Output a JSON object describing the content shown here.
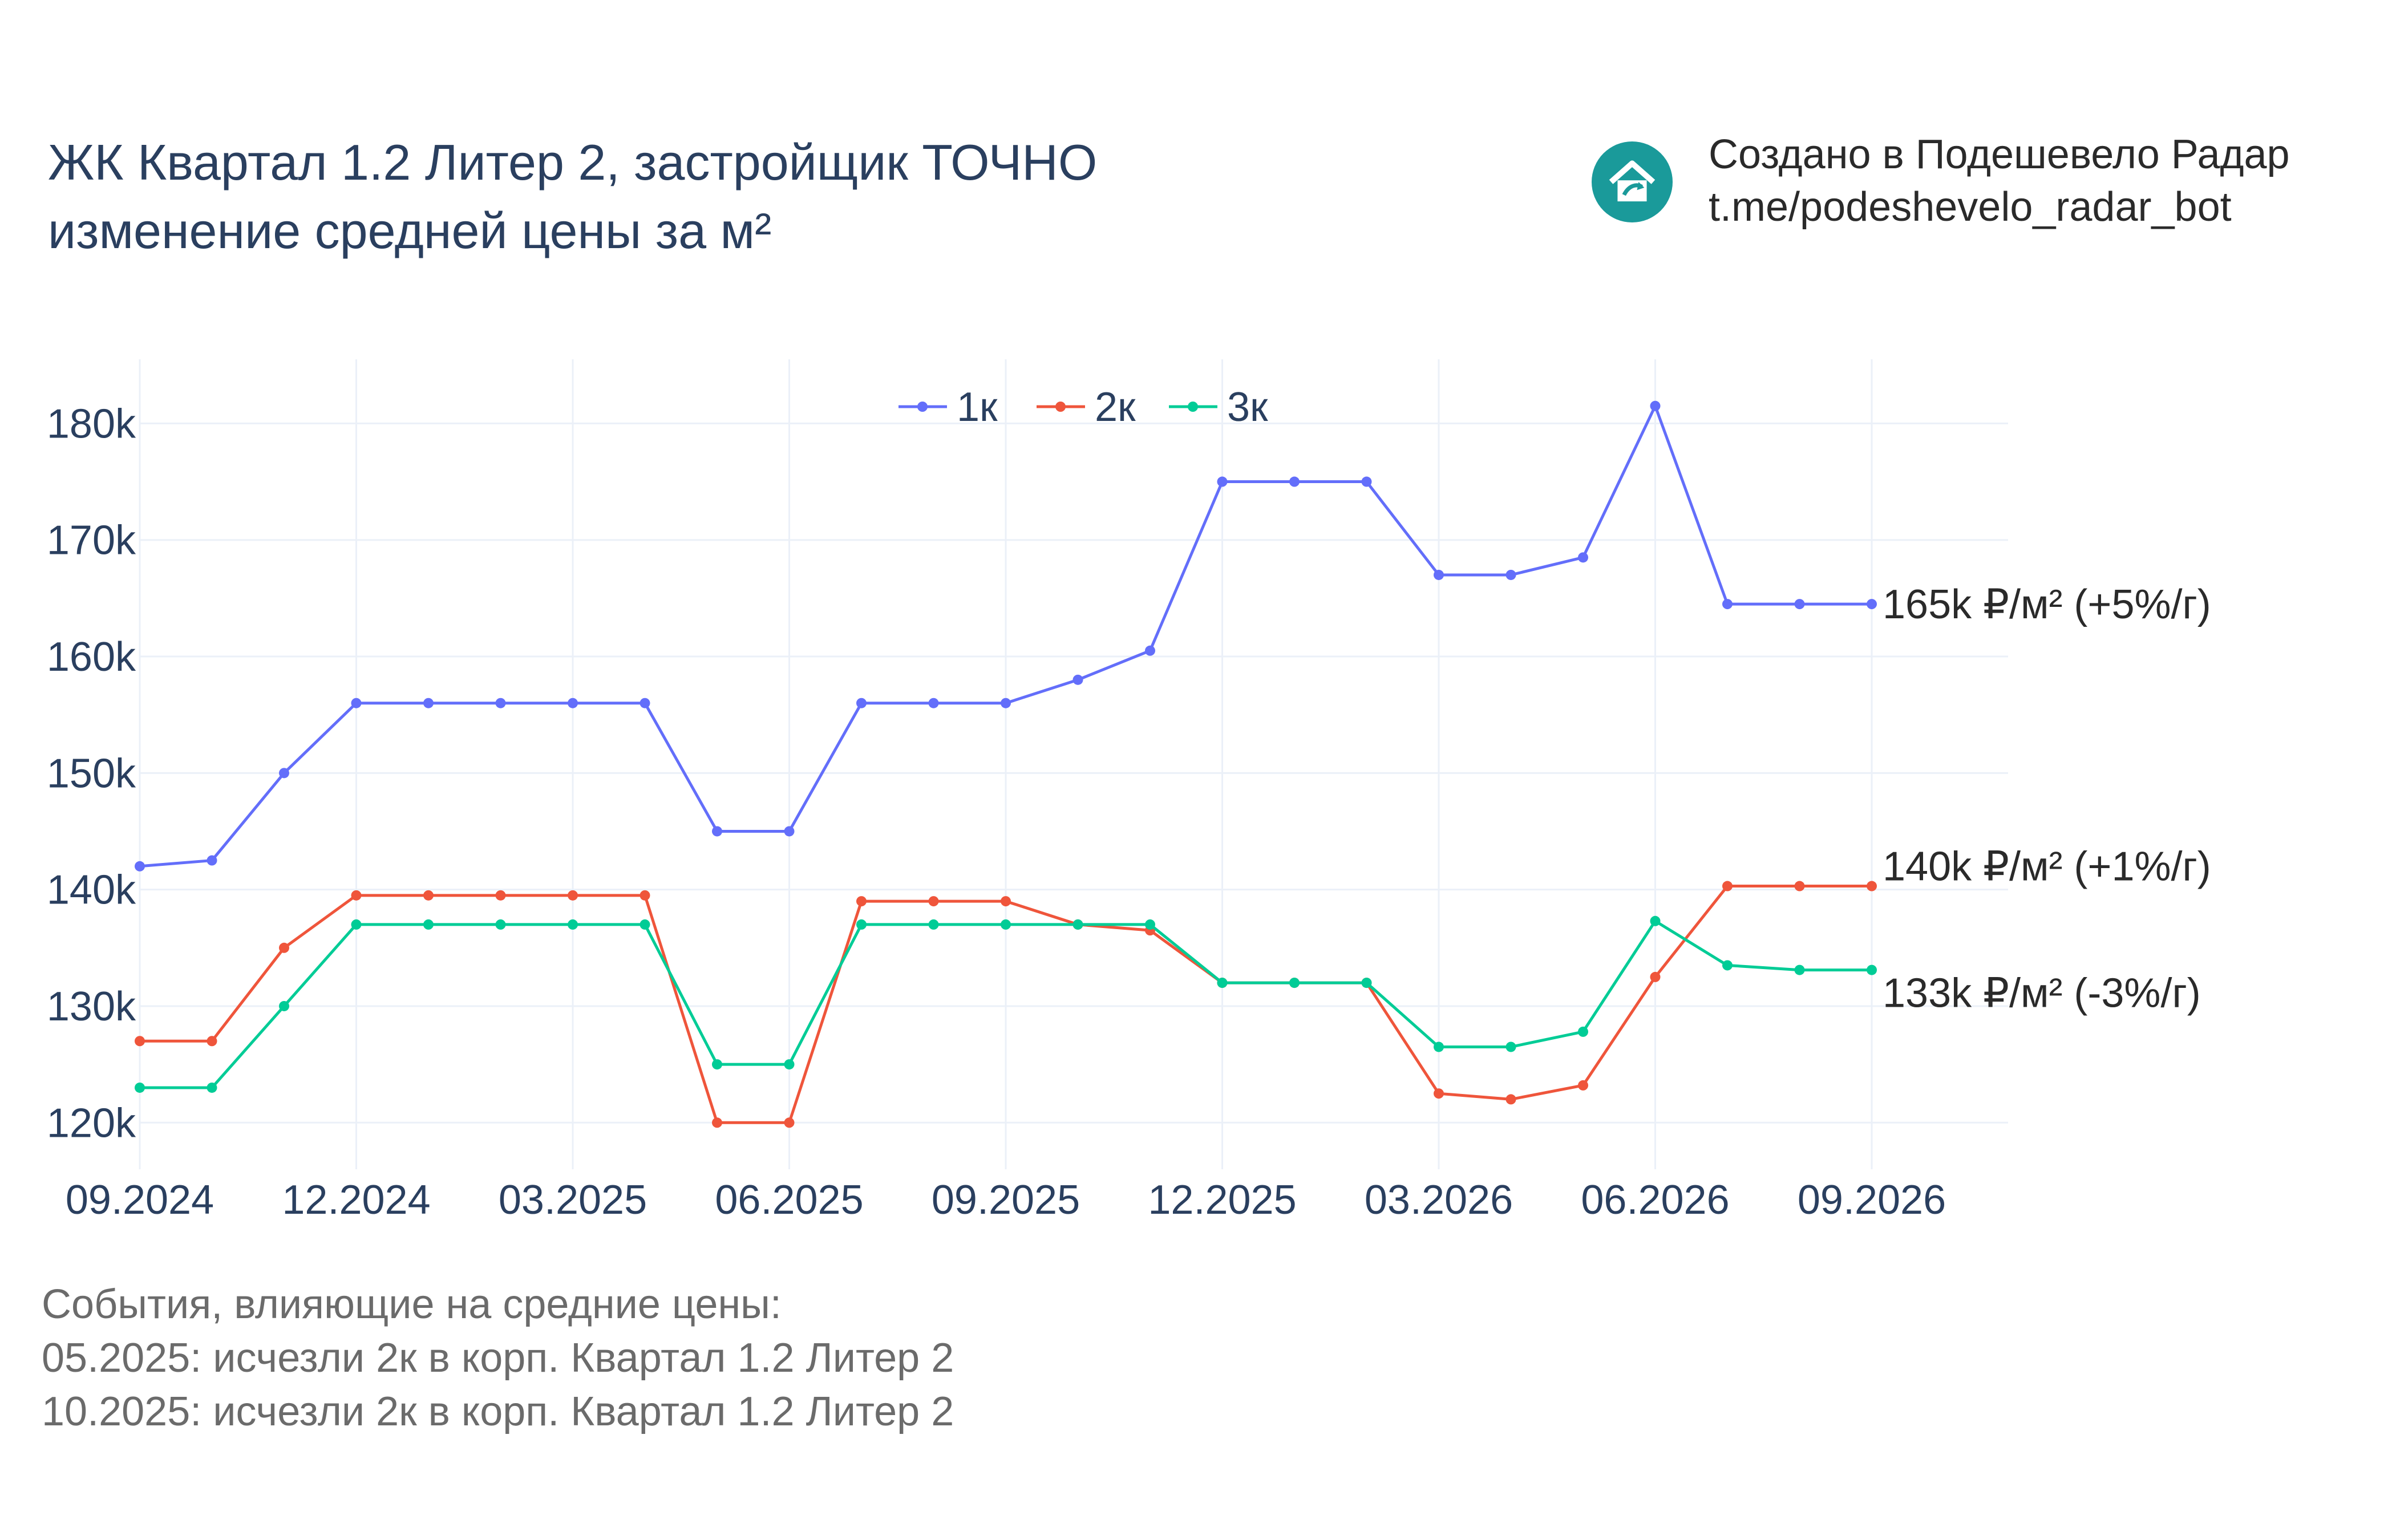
{
  "title": {
    "line1": "ЖК Квартал 1.2 Литер 2, застройщик ТОЧНО",
    "line2": "изменение средней цены за м²"
  },
  "brand": {
    "line1": "Создано в Подешевело Радар",
    "line2": "t.me/podeshevelo_radar_bot",
    "logo_icon": "house-arrow-icon",
    "logo_color": "#1a9a9a"
  },
  "events": {
    "heading": "События, влияющие на средние цены:",
    "items": [
      "05.2025: исчезли 2к в корп. Квартал 1.2 Литер 2",
      "10.2025: исчезли 2к в корп. Квартал 1.2 Литер 2"
    ]
  },
  "chart_data": {
    "type": "line",
    "x": [
      "09.2024",
      "10.2024",
      "11.2024",
      "12.2024",
      "01.2025",
      "02.2025",
      "03.2025",
      "04.2025",
      "05.2025",
      "06.2025",
      "07.2025",
      "08.2025",
      "09.2025",
      "10.2025",
      "11.2025",
      "12.2025",
      "01.2026",
      "02.2026",
      "03.2026",
      "04.2026",
      "05.2026",
      "06.2026",
      "07.2026",
      "08.2026",
      "09.2026"
    ],
    "x_tick_labels": [
      "09.2024",
      "12.2024",
      "03.2025",
      "06.2025",
      "09.2025",
      "12.2025",
      "03.2026",
      "06.2026",
      "09.2026"
    ],
    "y_tick_labels": [
      "120k",
      "130k",
      "140k",
      "150k",
      "160k",
      "170k",
      "180k"
    ],
    "y_ticks": [
      120000,
      130000,
      140000,
      150000,
      160000,
      170000,
      180000
    ],
    "ylim": [
      116000,
      185500
    ],
    "grid": true,
    "legend_position": "top-center",
    "series": [
      {
        "name": "1к",
        "color": "#636efa",
        "values": [
          142000,
          142500,
          150000,
          156000,
          156000,
          156000,
          156000,
          156000,
          145000,
          145000,
          156000,
          156000,
          156000,
          158000,
          160500,
          175000,
          175000,
          175000,
          167000,
          167000,
          168500,
          181500,
          164500,
          164500,
          164500
        ],
        "end_label": "165k ₽/м² (+5%/г)"
      },
      {
        "name": "2к",
        "color": "#ef553b",
        "values": [
          127000,
          127000,
          135000,
          139500,
          139500,
          139500,
          139500,
          139500,
          120000,
          120000,
          139000,
          139000,
          139000,
          137000,
          136500,
          132000,
          132000,
          132000,
          122500,
          122000,
          123200,
          132500,
          140300,
          140300,
          140300
        ],
        "end_label": "140k ₽/м² (+1%/г)"
      },
      {
        "name": "3к",
        "color": "#00cc96",
        "values": [
          123000,
          123000,
          130000,
          137000,
          137000,
          137000,
          137000,
          137000,
          125000,
          125000,
          137000,
          137000,
          137000,
          137000,
          137000,
          132000,
          132000,
          132000,
          126500,
          126500,
          127800,
          137300,
          133500,
          133100,
          133100
        ],
        "end_label": "133k ₽/м² (-3%/г)"
      }
    ]
  }
}
